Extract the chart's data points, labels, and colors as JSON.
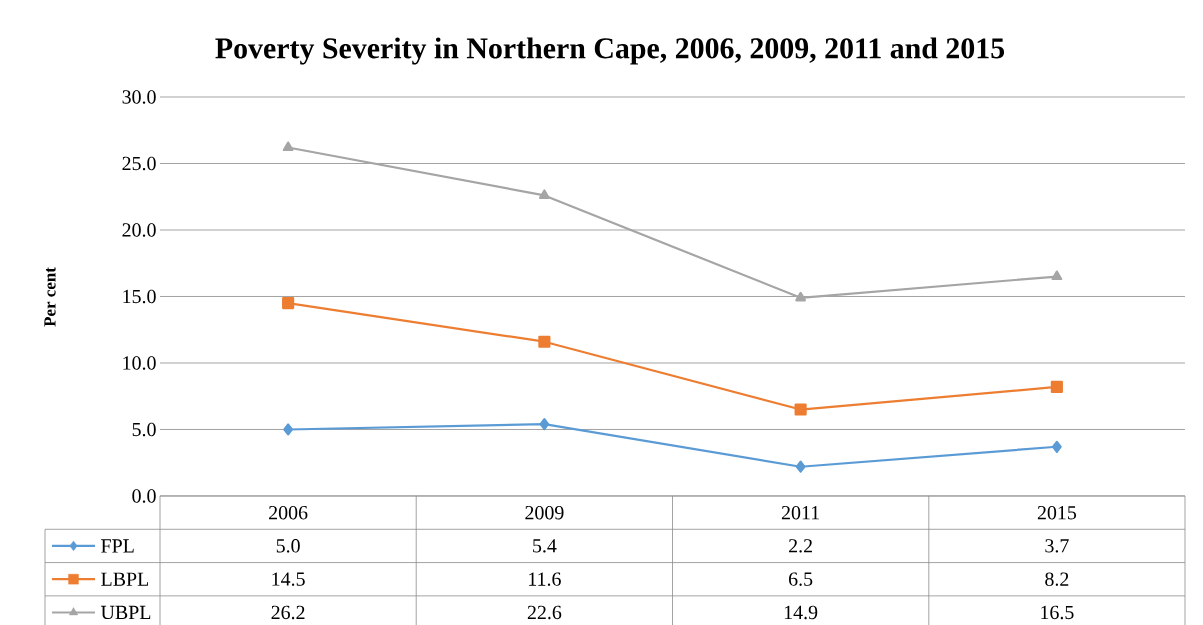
{
  "chart_data": {
    "type": "line",
    "title": "Poverty Severity in Northern Cape, 2006, 2009, 2011 and 2015",
    "ylabel": "Per cent",
    "categories": [
      "2006",
      "2009",
      "2011",
      "2015"
    ],
    "series": [
      {
        "name": "FPL",
        "color": "#5b9bd5",
        "marker": "diamond",
        "values": [
          5.0,
          5.4,
          2.2,
          3.7
        ],
        "value_labels": [
          "5.0",
          "5.4",
          "2.2",
          "3.7"
        ]
      },
      {
        "name": "LBPL",
        "color": "#ed7d31",
        "marker": "square",
        "values": [
          14.5,
          11.6,
          6.5,
          8.2
        ],
        "value_labels": [
          "14.5",
          "11.6",
          "6.5",
          "8.2"
        ]
      },
      {
        "name": "UBPL",
        "color": "#a5a5a5",
        "marker": "triangle",
        "values": [
          26.2,
          22.6,
          14.9,
          16.5
        ],
        "value_labels": [
          "26.2",
          "22.6",
          "14.9",
          "16.5"
        ]
      }
    ],
    "ylim": [
      0,
      30
    ],
    "yticks": [
      {
        "value": 0,
        "label": "0.0"
      },
      {
        "value": 5,
        "label": "5.0"
      },
      {
        "value": 10,
        "label": "10.0"
      },
      {
        "value": 15,
        "label": "15.0"
      },
      {
        "value": 20,
        "label": "20.0"
      },
      {
        "value": 25,
        "label": "25.0"
      },
      {
        "value": 30,
        "label": "30.0"
      }
    ],
    "grid": "y",
    "legend": "bottom",
    "line_style": "solid"
  }
}
